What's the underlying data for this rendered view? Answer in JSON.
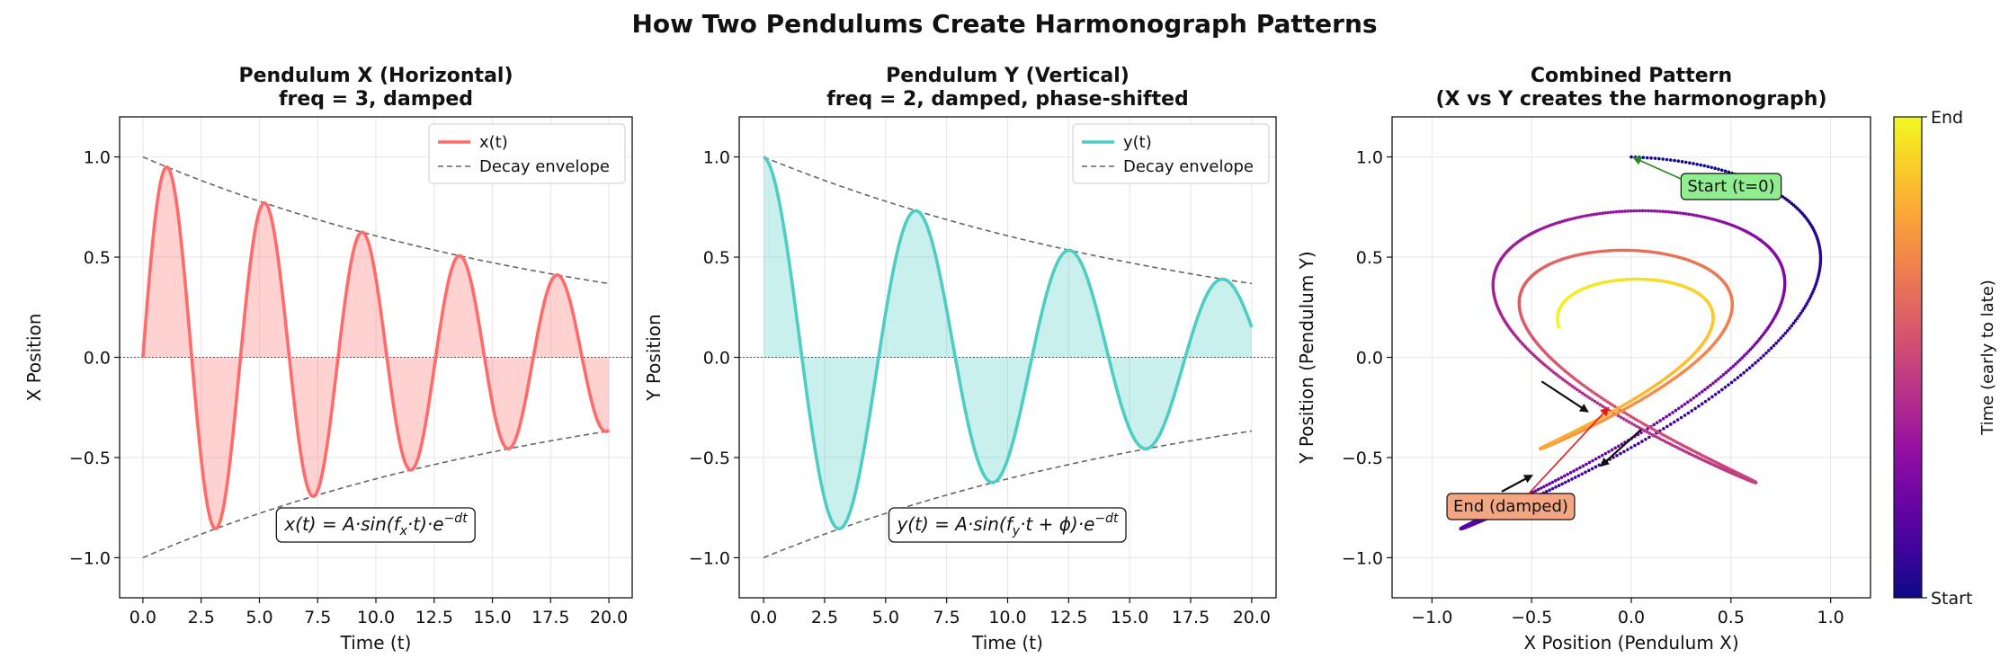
{
  "figure": {
    "suptitle": "How Two Pendulums Create Harmonograph Patterns"
  },
  "chart_data": [
    {
      "type": "line",
      "title_line1": "Pendulum X (Horizontal)",
      "title_line2": "freq = 3, damped",
      "xlabel": "Time (t)",
      "ylabel": "X Position",
      "xlim": [
        -1,
        21
      ],
      "ylim": [
        -1.2,
        1.2
      ],
      "xticks": [
        0,
        2.5,
        5,
        7.5,
        10,
        12.5,
        15,
        17.5,
        20
      ],
      "xtick_labels": [
        "0.0",
        "2.5",
        "5.0",
        "7.5",
        "10.0",
        "12.5",
        "15.0",
        "17.5",
        "20.0"
      ],
      "yticks": [
        -1,
        -0.5,
        0,
        0.5,
        1
      ],
      "ytick_labels": [
        "−1.0",
        "−0.5",
        "0.0",
        "0.5",
        "1.0"
      ],
      "grid": true,
      "legend_position": "upper-right",
      "series": [
        {
          "name": "x(t)",
          "color": "#ff6b6b",
          "style": "solid",
          "fill": true,
          "function": {
            "amplitude": 1.0,
            "frequency": 3,
            "phase": 0,
            "decay": 0.05,
            "t_start": 0,
            "t_end": 20,
            "time_scale": 0.5
          }
        },
        {
          "name": "Decay envelope",
          "color": "#666666",
          "style": "dashed",
          "function": {
            "amplitude": 1.0,
            "decay": 0.05,
            "t_start": 0,
            "t_end": 20,
            "mirrored": true
          }
        }
      ],
      "formula": {
        "lhs": "x(t) = A·sin(",
        "sym": "f",
        "sub": "x",
        "mid": "·t)·e",
        "sup": "−dt"
      }
    },
    {
      "type": "line",
      "title_line1": "Pendulum Y (Vertical)",
      "title_line2": "freq = 2, damped, phase-shifted",
      "xlabel": "Time (t)",
      "ylabel": "Y Position",
      "xlim": [
        -1,
        21
      ],
      "ylim": [
        -1.2,
        1.2
      ],
      "xticks": [
        0,
        2.5,
        5,
        7.5,
        10,
        12.5,
        15,
        17.5,
        20
      ],
      "xtick_labels": [
        "0.0",
        "2.5",
        "5.0",
        "7.5",
        "10.0",
        "12.5",
        "15.0",
        "17.5",
        "20.0"
      ],
      "yticks": [
        -1,
        -0.5,
        0,
        0.5,
        1
      ],
      "ytick_labels": [
        "−1.0",
        "−0.5",
        "0.0",
        "0.5",
        "1.0"
      ],
      "grid": true,
      "legend_position": "upper-right",
      "series": [
        {
          "name": "y(t)",
          "color": "#4ecdc4",
          "style": "solid",
          "fill": true,
          "function": {
            "amplitude": 1.0,
            "frequency": 2,
            "phase": 1.5708,
            "decay": 0.05,
            "t_start": 0,
            "t_end": 20,
            "time_scale": 0.5
          }
        },
        {
          "name": "Decay envelope",
          "color": "#666666",
          "style": "dashed",
          "function": {
            "amplitude": 1.0,
            "decay": 0.05,
            "t_start": 0,
            "t_end": 20,
            "mirrored": true
          }
        }
      ],
      "formula": {
        "lhs": "y(t) = A·sin(",
        "sym": "f",
        "sub": "y",
        "mid": "·t + ϕ)·e",
        "sup": "−dt"
      }
    },
    {
      "type": "scatter",
      "title_line1": "Combined Pattern",
      "title_line2": "(X vs Y creates the harmonograph)",
      "xlabel": "X Position (Pendulum X)",
      "ylabel": "Y Position (Pendulum Y)",
      "xlim": [
        -1.2,
        1.2
      ],
      "ylim": [
        -1.2,
        1.2
      ],
      "xticks": [
        -1,
        -0.5,
        0,
        0.5,
        1
      ],
      "xtick_labels": [
        "−1.0",
        "−0.5",
        "0.0",
        "0.5",
        "1.0"
      ],
      "yticks": [
        -1,
        -0.5,
        0,
        0.5,
        1
      ],
      "ytick_labels": [
        "−1.0",
        "−0.5",
        "0.0",
        "0.5",
        "1.0"
      ],
      "grid": true,
      "colormap": "plasma",
      "colorbar": {
        "label": "Time (early to late)",
        "top_label": "End",
        "bottom_label": "Start"
      },
      "annotations": [
        {
          "text": "Start (t=0)",
          "point": [
            0,
            1.0
          ],
          "box_color": "#90ee90",
          "arrow_color": "#228b22"
        },
        {
          "text": "End (damped)",
          "point": [
            -0.13,
            -0.24
          ],
          "box_color": "#f4a582",
          "arrow_color": "#e31a1c"
        }
      ]
    }
  ]
}
